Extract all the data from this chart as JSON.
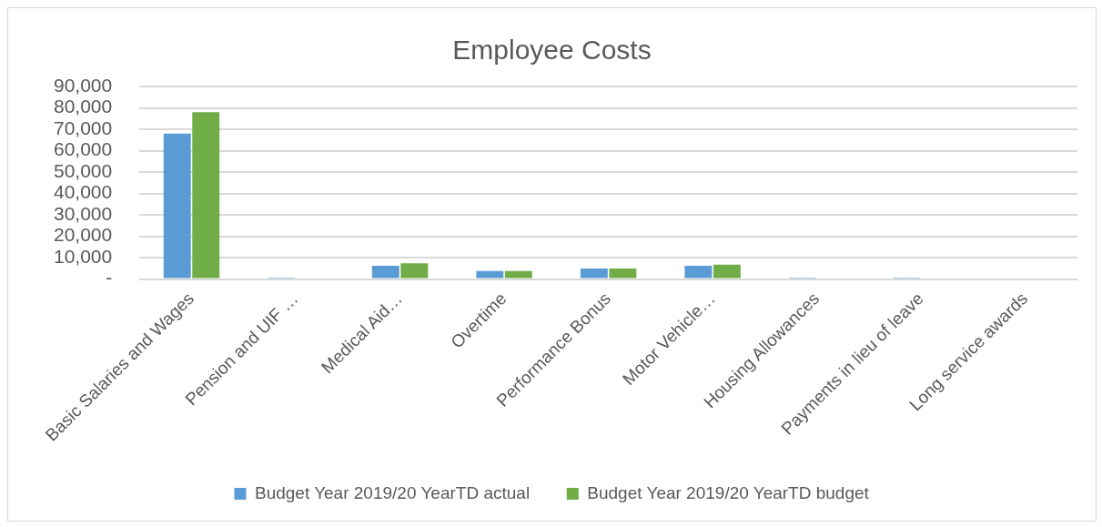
{
  "chart_data": {
    "type": "bar",
    "title": "Employee Costs",
    "categories": [
      "Basic Salaries and Wages",
      "Pension and UIF …",
      "Medical Aid…",
      "Overtime",
      "Performance Bonus",
      "Motor Vehicle…",
      "Housing Allowances",
      "Payments in lieu of leave",
      "Long service awards"
    ],
    "series": [
      {
        "name": "Budget Year 2019/20 YearTD actual",
        "color": "#5b9bd5",
        "values": [
          68000,
          700,
          6200,
          3800,
          4900,
          6200,
          700,
          700,
          0
        ]
      },
      {
        "name": "Budget Year 2019/20 YearTD budget",
        "color": "#70ad47",
        "values": [
          78000,
          0,
          7400,
          3800,
          4900,
          6700,
          0,
          0,
          0
        ]
      }
    ],
    "ylim": [
      0,
      90000
    ],
    "yticks": [
      {
        "value": 0,
        "label": "-"
      },
      {
        "value": 10000,
        "label": "10,000"
      },
      {
        "value": 20000,
        "label": "20,000"
      },
      {
        "value": 30000,
        "label": "30,000"
      },
      {
        "value": 40000,
        "label": "40,000"
      },
      {
        "value": 50000,
        "label": "50,000"
      },
      {
        "value": 60000,
        "label": "60,000"
      },
      {
        "value": 70000,
        "label": "70,000"
      },
      {
        "value": 80000,
        "label": "80,000"
      },
      {
        "value": 90000,
        "label": "90,000"
      }
    ],
    "grid": "y",
    "legend": "bottom"
  }
}
